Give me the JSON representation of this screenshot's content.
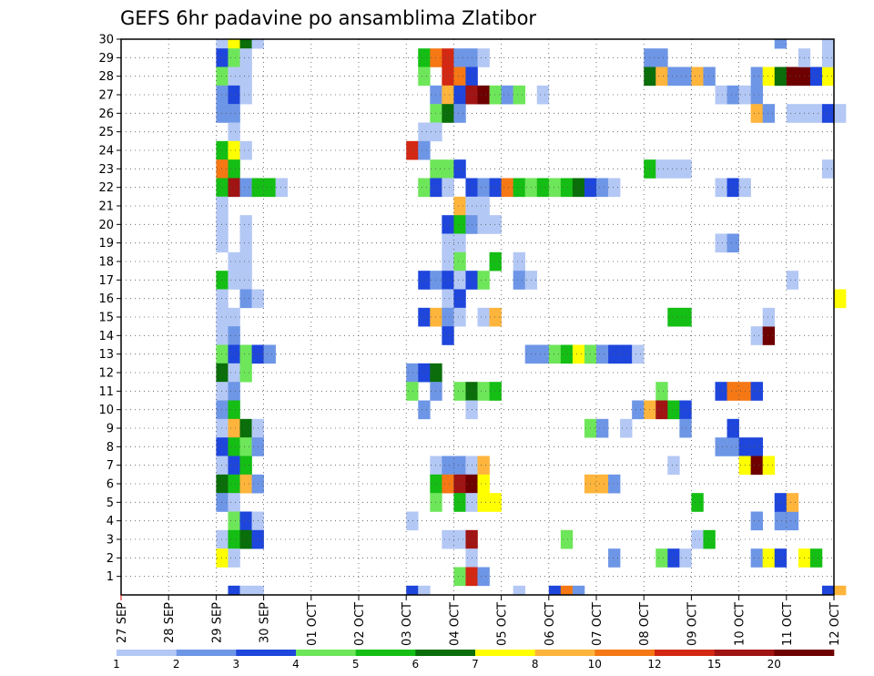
{
  "chart_data": {
    "type": "heatmap",
    "title": "GEFS 6hr padavine po ansamblima Zlatibor",
    "xlabel": "",
    "ylabel": "",
    "y_tick_labels": [
      "1",
      "2",
      "3",
      "4",
      "5",
      "6",
      "7",
      "8",
      "9",
      "10",
      "11",
      "12",
      "13",
      "14",
      "15",
      "16",
      "17",
      "18",
      "19",
      "20",
      "21",
      "22",
      "23",
      "24",
      "25",
      "26",
      "27",
      "28",
      "29",
      "30"
    ],
    "x_tick_labels": [
      "27 SEP",
      "28 SEP",
      "29 SEP",
      "30 SEP",
      "01 OCT",
      "02 OCT",
      "03 OCT",
      "04 OCT",
      "05 OCT",
      "06 OCT",
      "07 OCT",
      "08 OCT",
      "09 OCT",
      "10 OCT",
      "11 OCT",
      "12 OCT"
    ],
    "grid": true,
    "colorbar": {
      "labels": [
        "1",
        "2",
        "3",
        "4",
        "5",
        "6",
        "7",
        "8",
        "10",
        "12",
        "15",
        "20"
      ],
      "colors": [
        "#b4c8f5",
        "#6e96e6",
        "#1e46dc",
        "#6ee65a",
        "#14be14",
        "#0a6e0a",
        "#ffff00",
        "#ffb43c",
        "#f57814",
        "#d22814",
        "#a01414",
        "#6e0000"
      ]
    },
    "time_steps_per_day": 4,
    "cells": [
      [
        2,
        30,
        1
      ],
      [
        2.25,
        30,
        7
      ],
      [
        2.5,
        30,
        6
      ],
      [
        2.75,
        30,
        1
      ],
      [
        2,
        29,
        3
      ],
      [
        2.25,
        29,
        4
      ],
      [
        2.5,
        29,
        1
      ],
      [
        2,
        28,
        4
      ],
      [
        2.25,
        28,
        1
      ],
      [
        2.5,
        28,
        1
      ],
      [
        2,
        27,
        2
      ],
      [
        2.25,
        27,
        3
      ],
      [
        2.5,
        27,
        1
      ],
      [
        2,
        26,
        2
      ],
      [
        2.25,
        26,
        2
      ],
      [
        2.25,
        25,
        1
      ],
      [
        2,
        24,
        5
      ],
      [
        2.25,
        24,
        7
      ],
      [
        2.5,
        24,
        1
      ],
      [
        2,
        23,
        9
      ],
      [
        2.25,
        23,
        5
      ],
      [
        2,
        22,
        5
      ],
      [
        2.25,
        22,
        11
      ],
      [
        2.5,
        22,
        2
      ],
      [
        2.75,
        22,
        5
      ],
      [
        3,
        22,
        5
      ],
      [
        3.25,
        22,
        1
      ],
      [
        2,
        21,
        1
      ],
      [
        2,
        20,
        1
      ],
      [
        2.5,
        20,
        1
      ],
      [
        2,
        19,
        1
      ],
      [
        2.5,
        19,
        1
      ],
      [
        2.25,
        18,
        1
      ],
      [
        2.5,
        18,
        1
      ],
      [
        2,
        17,
        5
      ],
      [
        2.25,
        17,
        1
      ],
      [
        2.5,
        17,
        1
      ],
      [
        2,
        16,
        1
      ],
      [
        2.5,
        16,
        2
      ],
      [
        2.75,
        16,
        1
      ],
      [
        2,
        15,
        1
      ],
      [
        2.25,
        15,
        1
      ],
      [
        2,
        14,
        1
      ],
      [
        2.25,
        14,
        2
      ],
      [
        2,
        13,
        4
      ],
      [
        2.25,
        13,
        3
      ],
      [
        2.5,
        13,
        4
      ],
      [
        2.75,
        13,
        3
      ],
      [
        3,
        13,
        2
      ],
      [
        2,
        12,
        6
      ],
      [
        2.25,
        12,
        1
      ],
      [
        2.5,
        12,
        4
      ],
      [
        2,
        11,
        1
      ],
      [
        2.25,
        11,
        2
      ],
      [
        2,
        10,
        2
      ],
      [
        2.25,
        10,
        5
      ],
      [
        2,
        9,
        1
      ],
      [
        2.25,
        9,
        8
      ],
      [
        2.5,
        9,
        6
      ],
      [
        2.75,
        9,
        1
      ],
      [
        2,
        8,
        3
      ],
      [
        2.25,
        8,
        5
      ],
      [
        2.5,
        8,
        4
      ],
      [
        2.75,
        8,
        2
      ],
      [
        2,
        7,
        1
      ],
      [
        2.25,
        7,
        3
      ],
      [
        2.5,
        7,
        5
      ],
      [
        2,
        6,
        6
      ],
      [
        2.25,
        6,
        5
      ],
      [
        2.5,
        6,
        8
      ],
      [
        2.75,
        6,
        2
      ],
      [
        2,
        5,
        2
      ],
      [
        2.25,
        5,
        1
      ],
      [
        2.25,
        4,
        4
      ],
      [
        2.5,
        4,
        3
      ],
      [
        2.75,
        4,
        1
      ],
      [
        2,
        3,
        1
      ],
      [
        2.25,
        3,
        5
      ],
      [
        2.5,
        3,
        6
      ],
      [
        2.75,
        3,
        3
      ],
      [
        2,
        2,
        7
      ],
      [
        2.25,
        2,
        1
      ],
      [
        2.25,
        0,
        3
      ],
      [
        2.5,
        0,
        1
      ],
      [
        2.75,
        0,
        1
      ],
      [
        6.25,
        29,
        5
      ],
      [
        6.5,
        29,
        9
      ],
      [
        6.75,
        29,
        10
      ],
      [
        7,
        29,
        2
      ],
      [
        7.25,
        29,
        2
      ],
      [
        7.5,
        29,
        1
      ],
      [
        6.25,
        28,
        4
      ],
      [
        6.75,
        28,
        10
      ],
      [
        7,
        28,
        9
      ],
      [
        7.25,
        28,
        3
      ],
      [
        6.5,
        27,
        2
      ],
      [
        6.75,
        27,
        8
      ],
      [
        7,
        27,
        3
      ],
      [
        7.25,
        27,
        11
      ],
      [
        7.5,
        27,
        12
      ],
      [
        7.75,
        27,
        4
      ],
      [
        8,
        27,
        2
      ],
      [
        8.25,
        27,
        4
      ],
      [
        8.75,
        27,
        1
      ],
      [
        6.5,
        26,
        4
      ],
      [
        6.75,
        26,
        6
      ],
      [
        7,
        26,
        2
      ],
      [
        6.25,
        25,
        1
      ],
      [
        6.5,
        25,
        1
      ],
      [
        6,
        24,
        10
      ],
      [
        6.25,
        24,
        2
      ],
      [
        6.5,
        23,
        4
      ],
      [
        6.75,
        23,
        4
      ],
      [
        7,
        23,
        3
      ],
      [
        6.25,
        22,
        4
      ],
      [
        6.5,
        22,
        3
      ],
      [
        6.75,
        22,
        1
      ],
      [
        7.25,
        22,
        3
      ],
      [
        7.5,
        22,
        2
      ],
      [
        7.75,
        22,
        3
      ],
      [
        8,
        22,
        9
      ],
      [
        8.25,
        22,
        5
      ],
      [
        8.5,
        22,
        4
      ],
      [
        8.75,
        22,
        5
      ],
      [
        9,
        22,
        4
      ],
      [
        9.25,
        22,
        5
      ],
      [
        9.5,
        22,
        6
      ],
      [
        9.75,
        22,
        3
      ],
      [
        10,
        22,
        2
      ],
      [
        10.25,
        22,
        1
      ],
      [
        7,
        21,
        8
      ],
      [
        7.25,
        21,
        1
      ],
      [
        7.5,
        21,
        1
      ],
      [
        6.75,
        20,
        3
      ],
      [
        7,
        20,
        5
      ],
      [
        7.25,
        20,
        2
      ],
      [
        7.5,
        20,
        1
      ],
      [
        7.75,
        20,
        1
      ],
      [
        6.75,
        19,
        1
      ],
      [
        7,
        19,
        1
      ],
      [
        6.75,
        18,
        1
      ],
      [
        7,
        18,
        4
      ],
      [
        7.75,
        18,
        5
      ],
      [
        8.25,
        18,
        1
      ],
      [
        6.25,
        17,
        3
      ],
      [
        6.5,
        17,
        2
      ],
      [
        6.75,
        17,
        3
      ],
      [
        7,
        17,
        1
      ],
      [
        7.25,
        17,
        3
      ],
      [
        7.5,
        17,
        4
      ],
      [
        8.25,
        17,
        2
      ],
      [
        8.5,
        17,
        1
      ],
      [
        6.75,
        16,
        1
      ],
      [
        7,
        16,
        3
      ],
      [
        6.25,
        15,
        3
      ],
      [
        6.5,
        15,
        8
      ],
      [
        6.75,
        15,
        2
      ],
      [
        7,
        15,
        1
      ],
      [
        7.5,
        15,
        1
      ],
      [
        7.75,
        15,
        8
      ],
      [
        6.75,
        14,
        3
      ],
      [
        6,
        12,
        2
      ],
      [
        6.25,
        12,
        3
      ],
      [
        6.5,
        12,
        6
      ],
      [
        6,
        11,
        4
      ],
      [
        6.5,
        11,
        2
      ],
      [
        7,
        11,
        4
      ],
      [
        7.25,
        11,
        6
      ],
      [
        7.5,
        11,
        4
      ],
      [
        7.75,
        11,
        5
      ],
      [
        6.25,
        10,
        2
      ],
      [
        7.25,
        10,
        1
      ],
      [
        6.5,
        7,
        1
      ],
      [
        6.75,
        7,
        2
      ],
      [
        7,
        7,
        2
      ],
      [
        7.25,
        7,
        1
      ],
      [
        7.5,
        7,
        8
      ],
      [
        6.5,
        6,
        5
      ],
      [
        6.75,
        6,
        9
      ],
      [
        7,
        6,
        11
      ],
      [
        7.25,
        6,
        12
      ],
      [
        7.5,
        6,
        7
      ],
      [
        6.5,
        5,
        4
      ],
      [
        7,
        5,
        5
      ],
      [
        7.25,
        5,
        1
      ],
      [
        7.5,
        5,
        7
      ],
      [
        7.75,
        5,
        7
      ],
      [
        6,
        4,
        1
      ],
      [
        6.75,
        3,
        1
      ],
      [
        7,
        3,
        1
      ],
      [
        7.25,
        3,
        11
      ],
      [
        7.25,
        2,
        1
      ],
      [
        7,
        1,
        4
      ],
      [
        7.25,
        1,
        10
      ],
      [
        7.5,
        1,
        2
      ],
      [
        6,
        0,
        3
      ],
      [
        6.25,
        0,
        1
      ],
      [
        8.5,
        13,
        2
      ],
      [
        8.75,
        13,
        2
      ],
      [
        9,
        13,
        4
      ],
      [
        9.25,
        13,
        5
      ],
      [
        9.5,
        13,
        7
      ],
      [
        9.75,
        13,
        4
      ],
      [
        10,
        13,
        2
      ],
      [
        10.25,
        13,
        3
      ],
      [
        10.5,
        13,
        3
      ],
      [
        10.75,
        13,
        1
      ],
      [
        9.75,
        9,
        4
      ],
      [
        10,
        9,
        2
      ],
      [
        10.5,
        9,
        1
      ],
      [
        9.25,
        3,
        4
      ],
      [
        9.75,
        6,
        8
      ],
      [
        10,
        6,
        8
      ],
      [
        10.25,
        6,
        2
      ],
      [
        10.25,
        2,
        2
      ],
      [
        8.25,
        0,
        1
      ],
      [
        9,
        0,
        3
      ],
      [
        9.25,
        0,
        9
      ],
      [
        9.5,
        0,
        2
      ],
      [
        11,
        29,
        2
      ],
      [
        11.25,
        29,
        2
      ],
      [
        11,
        28,
        6
      ],
      [
        11.25,
        28,
        8
      ],
      [
        11.5,
        28,
        2
      ],
      [
        11.75,
        28,
        2
      ],
      [
        12,
        28,
        8
      ],
      [
        12.25,
        28,
        2
      ],
      [
        11,
        23,
        5
      ],
      [
        11.25,
        23,
        1
      ],
      [
        11.5,
        23,
        1
      ],
      [
        11.75,
        23,
        1
      ],
      [
        11.5,
        15,
        5
      ],
      [
        11.75,
        15,
        5
      ],
      [
        11.25,
        11,
        4
      ],
      [
        10.75,
        10,
        2
      ],
      [
        11,
        10,
        8
      ],
      [
        11.25,
        10,
        11
      ],
      [
        11.5,
        10,
        5
      ],
      [
        11.75,
        10,
        3
      ],
      [
        11.75,
        9,
        2
      ],
      [
        11.5,
        7,
        1
      ],
      [
        11.25,
        2,
        4
      ],
      [
        11.5,
        2,
        3
      ],
      [
        11.75,
        2,
        1
      ],
      [
        12,
        3,
        1
      ],
      [
        12.25,
        3,
        5
      ],
      [
        12,
        5,
        5
      ],
      [
        12.5,
        27,
        1
      ],
      [
        12.75,
        27,
        2
      ],
      [
        13,
        27,
        1
      ],
      [
        12.5,
        22,
        1
      ],
      [
        12.75,
        22,
        3
      ],
      [
        13,
        22,
        1
      ],
      [
        12.5,
        19,
        1
      ],
      [
        12.75,
        19,
        2
      ],
      [
        12.5,
        11,
        3
      ],
      [
        12.75,
        11,
        9
      ],
      [
        13,
        11,
        9
      ],
      [
        13.25,
        11,
        3
      ],
      [
        12.5,
        8,
        2
      ],
      [
        12.75,
        8,
        2
      ],
      [
        13,
        8,
        3
      ],
      [
        13.25,
        8,
        3
      ],
      [
        12.75,
        9,
        3
      ],
      [
        13,
        7,
        7
      ],
      [
        13.25,
        7,
        12
      ],
      [
        13.5,
        7,
        7
      ],
      [
        13.25,
        4,
        2
      ],
      [
        13.75,
        4,
        2
      ],
      [
        14,
        4,
        2
      ],
      [
        13.25,
        2,
        2
      ],
      [
        13.5,
        2,
        7
      ],
      [
        13.75,
        2,
        3
      ],
      [
        14.25,
        2,
        7
      ],
      [
        14.5,
        2,
        5
      ],
      [
        13.25,
        14,
        1
      ],
      [
        13.5,
        14,
        12
      ],
      [
        13.5,
        15,
        1
      ],
      [
        13.25,
        28,
        2
      ],
      [
        13.5,
        28,
        7
      ],
      [
        13.75,
        28,
        6
      ],
      [
        14,
        28,
        12
      ],
      [
        14.25,
        28,
        12
      ],
      [
        14.5,
        28,
        3
      ],
      [
        14.75,
        28,
        7
      ],
      [
        13.25,
        27,
        2
      ],
      [
        13.25,
        26,
        8
      ],
      [
        13.5,
        26,
        2
      ],
      [
        14,
        26,
        1
      ],
      [
        14.25,
        26,
        1
      ],
      [
        14.5,
        26,
        1
      ],
      [
        14.75,
        26,
        3
      ],
      [
        15,
        26,
        1
      ],
      [
        13.75,
        30,
        2
      ],
      [
        14.25,
        29,
        1
      ],
      [
        14.75,
        29,
        1
      ],
      [
        14.75,
        30,
        1
      ],
      [
        14.75,
        23,
        1
      ],
      [
        14,
        17,
        1
      ],
      [
        15,
        16,
        7
      ],
      [
        13.75,
        5,
        3
      ],
      [
        14,
        5,
        8
      ],
      [
        14.75,
        0,
        3
      ],
      [
        15,
        0,
        8
      ]
    ]
  }
}
